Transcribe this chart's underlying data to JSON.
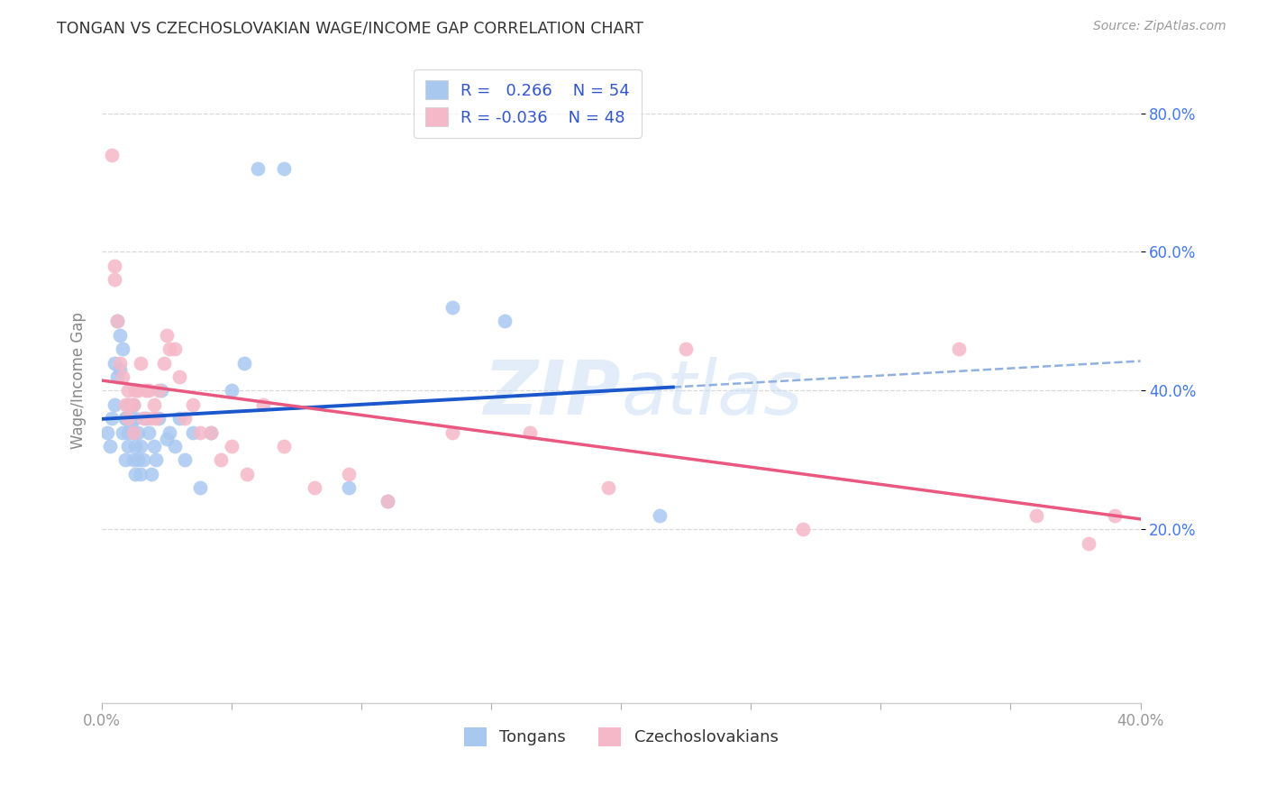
{
  "title": "TONGAN VS CZECHOSLOVAKIAN WAGE/INCOME GAP CORRELATION CHART",
  "source": "Source: ZipAtlas.com",
  "ylabel": "Wage/Income Gap",
  "xlim": [
    0.0,
    0.4
  ],
  "ylim": [
    -0.05,
    0.88
  ],
  "xticks": [
    0.0,
    0.05,
    0.1,
    0.15,
    0.2,
    0.25,
    0.3,
    0.35,
    0.4
  ],
  "xtick_labels": [
    "0.0%",
    "",
    "",
    "",
    "",
    "",
    "",
    "",
    "40.0%"
  ],
  "ytick_positions": [
    0.2,
    0.4,
    0.6,
    0.8
  ],
  "ytick_labels": [
    "20.0%",
    "40.0%",
    "60.0%",
    "80.0%"
  ],
  "background_color": "#ffffff",
  "grid_color": "#d8d8d8",
  "blue_color": "#a8c8f0",
  "pink_color": "#f5b8c8",
  "blue_line_color": "#1a56cc",
  "pink_line_color": "#e85880",
  "dashed_color": "#90b0e0",
  "watermark_color": "#c8ddf5",
  "legend_R_blue": "0.266",
  "legend_N_blue": "54",
  "legend_R_pink": "-0.036",
  "legend_N_pink": "48",
  "tongan_x": [
    0.002,
    0.003,
    0.004,
    0.005,
    0.005,
    0.006,
    0.006,
    0.007,
    0.007,
    0.008,
    0.008,
    0.009,
    0.009,
    0.009,
    0.01,
    0.01,
    0.01,
    0.011,
    0.011,
    0.012,
    0.012,
    0.012,
    0.013,
    0.013,
    0.013,
    0.014,
    0.014,
    0.015,
    0.015,
    0.016,
    0.017,
    0.018,
    0.019,
    0.02,
    0.021,
    0.022,
    0.023,
    0.025,
    0.026,
    0.028,
    0.03,
    0.032,
    0.035,
    0.038,
    0.042,
    0.05,
    0.055,
    0.06,
    0.07,
    0.095,
    0.11,
    0.135,
    0.155,
    0.215
  ],
  "tongan_y": [
    0.34,
    0.32,
    0.36,
    0.38,
    0.44,
    0.5,
    0.42,
    0.48,
    0.43,
    0.46,
    0.34,
    0.36,
    0.36,
    0.3,
    0.38,
    0.34,
    0.32,
    0.36,
    0.35,
    0.38,
    0.34,
    0.3,
    0.36,
    0.32,
    0.28,
    0.34,
    0.3,
    0.32,
    0.28,
    0.3,
    0.36,
    0.34,
    0.28,
    0.32,
    0.3,
    0.36,
    0.4,
    0.33,
    0.34,
    0.32,
    0.36,
    0.3,
    0.34,
    0.26,
    0.34,
    0.4,
    0.44,
    0.72,
    0.72,
    0.26,
    0.24,
    0.52,
    0.5,
    0.22
  ],
  "czech_x": [
    0.004,
    0.005,
    0.006,
    0.007,
    0.008,
    0.009,
    0.01,
    0.01,
    0.011,
    0.012,
    0.013,
    0.014,
    0.015,
    0.016,
    0.017,
    0.018,
    0.019,
    0.02,
    0.021,
    0.022,
    0.024,
    0.025,
    0.026,
    0.028,
    0.03,
    0.032,
    0.035,
    0.038,
    0.042,
    0.046,
    0.05,
    0.056,
    0.062,
    0.07,
    0.082,
    0.095,
    0.11,
    0.135,
    0.165,
    0.195,
    0.225,
    0.27,
    0.33,
    0.36,
    0.38,
    0.39,
    0.005,
    0.012
  ],
  "czech_y": [
    0.74,
    0.56,
    0.5,
    0.44,
    0.42,
    0.38,
    0.4,
    0.36,
    0.38,
    0.38,
    0.4,
    0.4,
    0.44,
    0.36,
    0.4,
    0.4,
    0.36,
    0.38,
    0.36,
    0.4,
    0.44,
    0.48,
    0.46,
    0.46,
    0.42,
    0.36,
    0.38,
    0.34,
    0.34,
    0.3,
    0.32,
    0.28,
    0.38,
    0.32,
    0.26,
    0.28,
    0.24,
    0.34,
    0.34,
    0.26,
    0.46,
    0.2,
    0.46,
    0.22,
    0.18,
    0.22,
    0.58,
    0.34
  ]
}
